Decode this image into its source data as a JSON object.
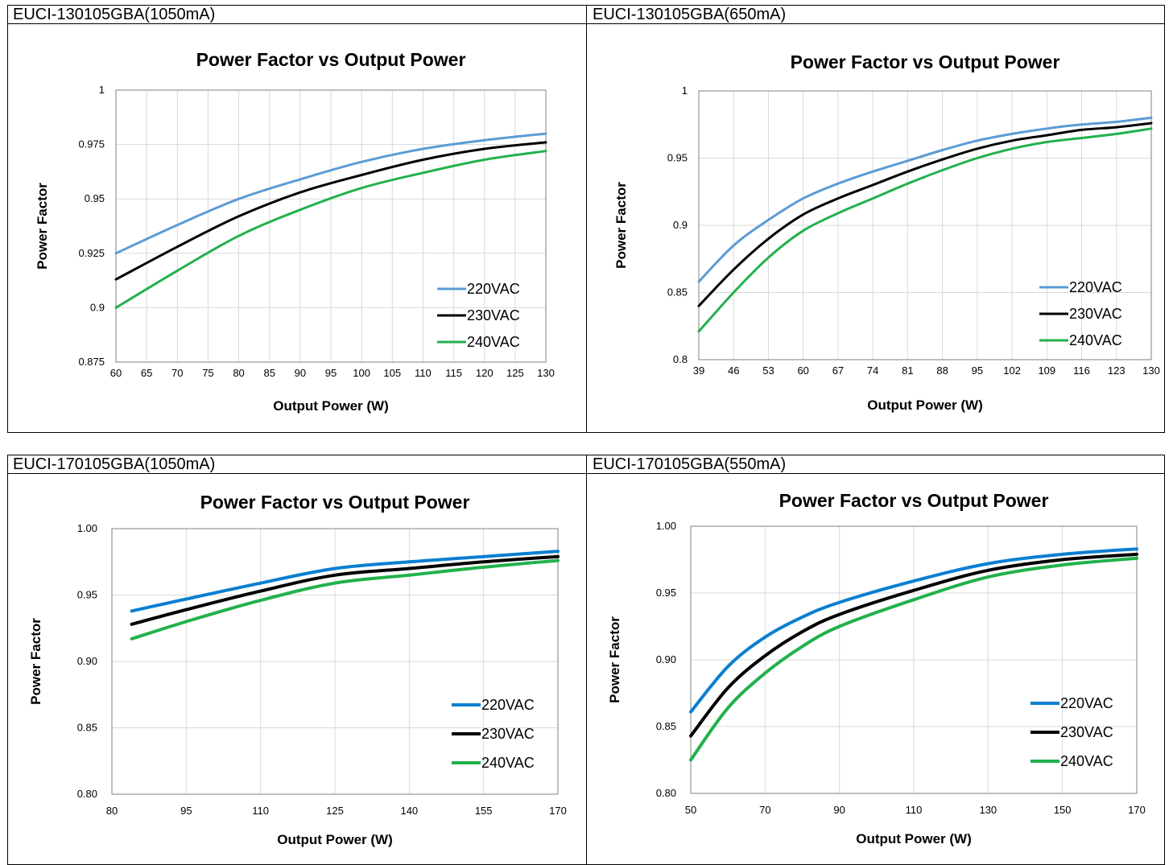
{
  "panels": [
    {
      "label": "EUCI-130105GBA(1050mA)",
      "chart_data": {
        "type": "line",
        "title": "Power Factor vs Output Power",
        "xlabel": "Output Power (W)",
        "ylabel": "Power Factor",
        "xlim": [
          60,
          130
        ],
        "ylim": [
          0.875,
          1
        ],
        "x_ticks": [
          "60",
          "65",
          "70",
          "75",
          "80",
          "85",
          "90",
          "95",
          "100",
          "105",
          "110",
          "115",
          "120",
          "125",
          "130"
        ],
        "y_ticks": [
          "0.875",
          "0.9",
          "0.925",
          "0.95",
          "0.975",
          "1"
        ],
        "grid": true,
        "legend_position": "bottom-right",
        "series": [
          {
            "name": "220VAC",
            "color": "#5B9BD5",
            "x": [
              60,
              70,
              80,
              90,
              100,
              110,
              120,
              130
            ],
            "y": [
              0.925,
              0.938,
              0.95,
              0.959,
              0.967,
              0.973,
              0.977,
              0.98
            ]
          },
          {
            "name": "230VAC",
            "color": "#000000",
            "x": [
              60,
              70,
              80,
              90,
              100,
              110,
              120,
              130
            ],
            "y": [
              0.913,
              0.928,
              0.942,
              0.953,
              0.961,
              0.968,
              0.973,
              0.976
            ]
          },
          {
            "name": "240VAC",
            "color": "#22B14C",
            "x": [
              60,
              70,
              80,
              90,
              100,
              110,
              120,
              130
            ],
            "y": [
              0.9,
              0.917,
              0.933,
              0.945,
              0.955,
              0.962,
              0.968,
              0.972
            ]
          }
        ]
      }
    },
    {
      "label": "EUCI-130105GBA(650mA)",
      "chart_data": {
        "type": "line",
        "title": "Power Factor vs Output Power",
        "xlabel": "Output Power (W)",
        "ylabel": "Power Factor",
        "xlim": [
          39,
          130
        ],
        "ylim": [
          0.8,
          1
        ],
        "x_ticks": [
          "39",
          "46",
          "53",
          "60",
          "67",
          "74",
          "81",
          "88",
          "95",
          "102",
          "109",
          "116",
          "123",
          "130"
        ],
        "y_ticks": [
          "0.8",
          "0.85",
          "0.9",
          "0.95",
          "1"
        ],
        "grid": true,
        "legend_position": "bottom-right",
        "series": [
          {
            "name": "220VAC",
            "color": "#5B9BD5",
            "x": [
              39,
              46,
              53,
              60,
              67,
              74,
              81,
              88,
              95,
              102,
              109,
              116,
              123,
              130
            ],
            "y": [
              0.858,
              0.885,
              0.904,
              0.92,
              0.931,
              0.94,
              0.948,
              0.956,
              0.963,
              0.968,
              0.972,
              0.975,
              0.977,
              0.98
            ]
          },
          {
            "name": "230VAC",
            "color": "#000000",
            "x": [
              39,
              46,
              53,
              60,
              67,
              74,
              81,
              88,
              95,
              102,
              109,
              116,
              123,
              130
            ],
            "y": [
              0.84,
              0.867,
              0.89,
              0.908,
              0.92,
              0.93,
              0.94,
              0.949,
              0.957,
              0.963,
              0.967,
              0.971,
              0.973,
              0.976
            ]
          },
          {
            "name": "240VAC",
            "color": "#22B14C",
            "x": [
              39,
              46,
              53,
              60,
              67,
              74,
              81,
              88,
              95,
              102,
              109,
              116,
              123,
              130
            ],
            "y": [
              0.821,
              0.85,
              0.876,
              0.896,
              0.909,
              0.92,
              0.931,
              0.941,
              0.95,
              0.957,
              0.962,
              0.965,
              0.968,
              0.972
            ]
          }
        ]
      }
    },
    {
      "label": "EUCI-170105GBA(1050mA)",
      "chart_data": {
        "type": "line",
        "title": "Power Factor vs Output Power",
        "xlabel": "Output Power (W)",
        "ylabel": "Power Factor",
        "xlim": [
          80,
          170
        ],
        "ylim": [
          0.8,
          1.0
        ],
        "x_ticks": [
          "80",
          "95",
          "110",
          "125",
          "140",
          "155",
          "170"
        ],
        "y_ticks": [
          "0.80",
          "0.85",
          "0.90",
          "0.95",
          "1.00"
        ],
        "grid": true,
        "legend_position": "bottom-right",
        "series": [
          {
            "name": "220VAC",
            "color": "#0A7FD1",
            "x": [
              84,
              95,
              110,
              125,
              140,
              155,
              170
            ],
            "y": [
              0.938,
              0.947,
              0.959,
              0.97,
              0.975,
              0.979,
              0.983
            ]
          },
          {
            "name": "230VAC",
            "color": "#000000",
            "x": [
              84,
              95,
              110,
              125,
              140,
              155,
              170
            ],
            "y": [
              0.928,
              0.939,
              0.953,
              0.965,
              0.97,
              0.975,
              0.979
            ]
          },
          {
            "name": "240VAC",
            "color": "#22B14C",
            "x": [
              84,
              95,
              110,
              125,
              140,
              155,
              170
            ],
            "y": [
              0.917,
              0.93,
              0.946,
              0.959,
              0.965,
              0.971,
              0.976
            ]
          }
        ]
      }
    },
    {
      "label": "EUCI-170105GBA(550mA)",
      "chart_data": {
        "type": "line",
        "title": "Power Factor vs Output Power",
        "xlabel": "Output Power (W)",
        "ylabel": "Power Factor",
        "xlim": [
          50,
          170
        ],
        "ylim": [
          0.8,
          1.0
        ],
        "x_ticks": [
          "50",
          "70",
          "90",
          "110",
          "130",
          "150",
          "170"
        ],
        "y_ticks": [
          "0.80",
          "0.85",
          "0.90",
          "0.95",
          "1.00"
        ],
        "grid": true,
        "legend_position": "bottom-right",
        "series": [
          {
            "name": "220VAC",
            "color": "#0A7FD1",
            "x": [
              50,
              60,
              70,
              80,
              90,
              110,
              130,
              150,
              170
            ],
            "y": [
              0.861,
              0.895,
              0.917,
              0.932,
              0.943,
              0.959,
              0.972,
              0.979,
              0.983
            ]
          },
          {
            "name": "230VAC",
            "color": "#000000",
            "x": [
              50,
              60,
              70,
              80,
              90,
              110,
              130,
              150,
              170
            ],
            "y": [
              0.843,
              0.879,
              0.903,
              0.921,
              0.934,
              0.952,
              0.967,
              0.975,
              0.979
            ]
          },
          {
            "name": "240VAC",
            "color": "#22B14C",
            "x": [
              50,
              60,
              70,
              80,
              90,
              110,
              130,
              150,
              170
            ],
            "y": [
              0.825,
              0.864,
              0.89,
              0.91,
              0.925,
              0.945,
              0.962,
              0.971,
              0.976
            ]
          }
        ]
      }
    }
  ]
}
